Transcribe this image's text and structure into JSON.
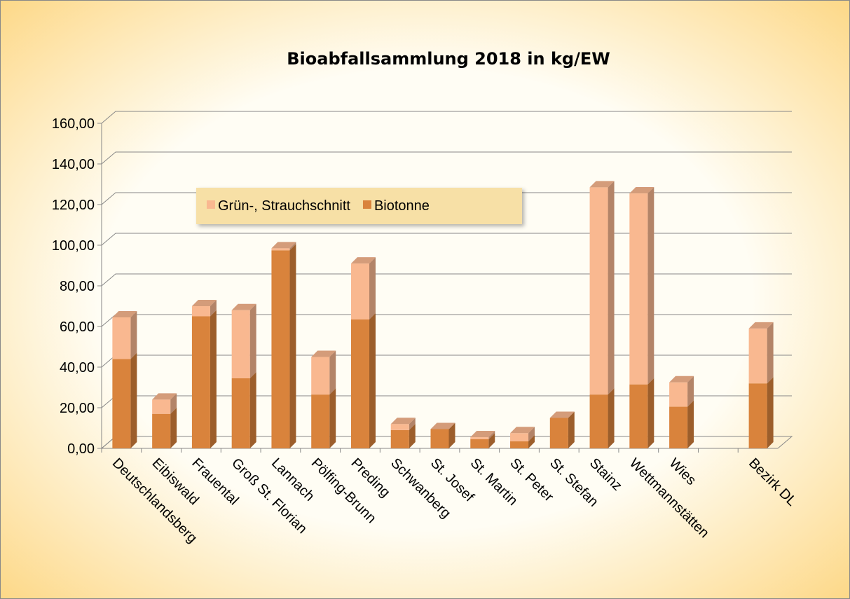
{
  "chart_data": {
    "type": "bar3d_stacked",
    "title": "Bioabfallsammlung 2018 in kg/EW",
    "categories": [
      "Deutschlandsberg",
      "Eibiswald",
      "Frauental",
      "Groß St. Florian",
      "Lannach",
      "Pölfing-Brunn",
      "Preding",
      "Schwanberg",
      "St. Josef",
      "St. Martin",
      "St. Peter",
      "St. Stefan",
      "Stainz",
      "Wettmannstätten",
      "Wies",
      null,
      "Bezirk DL"
    ],
    "series": [
      {
        "name": "Grün-, Strauchschnitt",
        "color": "#f9b890",
        "values": [
          20.5,
          7,
          5,
          33.5,
          1,
          18.5,
          27.5,
          3,
          0,
          1,
          4,
          0,
          102,
          94,
          12,
          null,
          27
        ]
      },
      {
        "name": "Biotonne",
        "color": "#d9833c",
        "values": [
          44,
          17,
          65,
          34.5,
          97.5,
          26.5,
          63.5,
          9,
          9.5,
          4.5,
          3.5,
          15,
          26.5,
          31.5,
          20.5,
          null,
          32
        ]
      }
    ],
    "ylim": [
      0,
      160
    ],
    "yticks": [
      {
        "value": 0,
        "label": "0,00"
      },
      {
        "value": 20,
        "label": "20,00"
      },
      {
        "value": 40,
        "label": "40,00"
      },
      {
        "value": 60,
        "label": "60,00"
      },
      {
        "value": 80,
        "label": "80,00"
      },
      {
        "value": 100,
        "label": "100,00"
      },
      {
        "value": 120,
        "label": "120,00"
      },
      {
        "value": 140,
        "label": "140,00"
      },
      {
        "value": 160,
        "label": "160,00"
      }
    ],
    "grid": true,
    "legend": "top-left"
  }
}
